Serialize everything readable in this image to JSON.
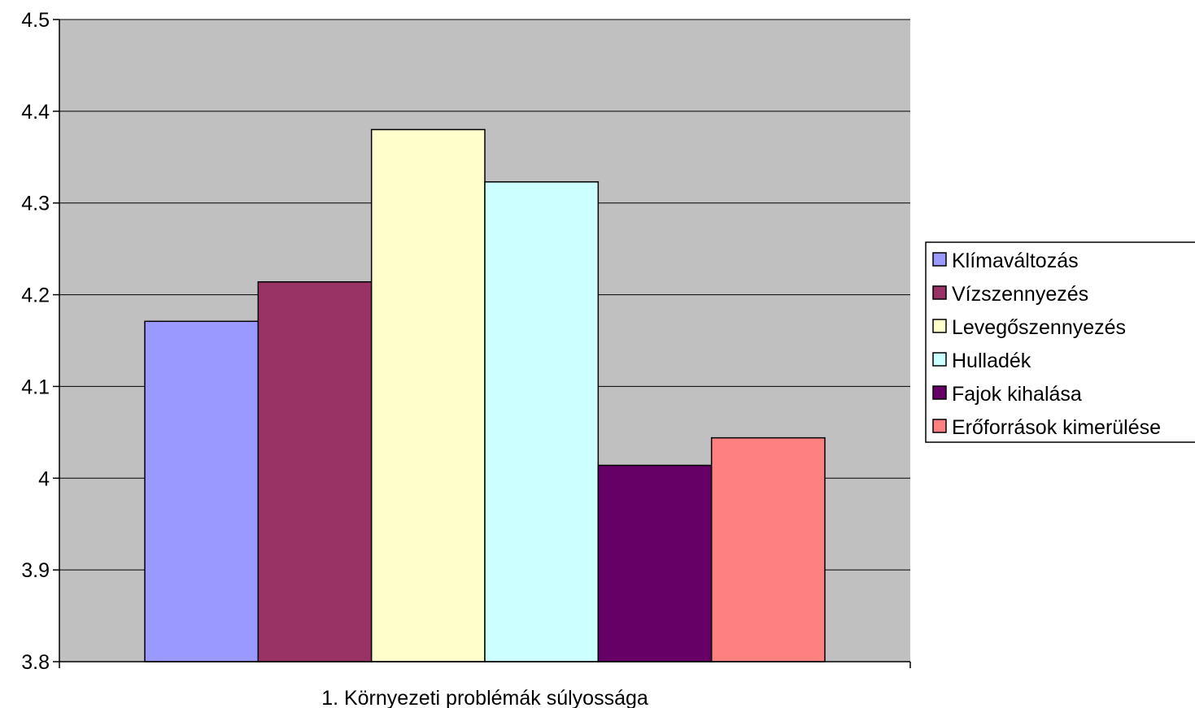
{
  "chart_data": {
    "type": "bar",
    "categories": [
      "1. Környezeti problémák súlyossága"
    ],
    "series": [
      {
        "name": "Klímaváltozás",
        "values": [
          4.171
        ],
        "color": "#9999ff"
      },
      {
        "name": "Vízszennyezés",
        "values": [
          4.214
        ],
        "color": "#993366"
      },
      {
        "name": "Levegőszennyezés",
        "values": [
          4.38
        ],
        "color": "#ffffcc"
      },
      {
        "name": "Hulladék",
        "values": [
          4.323
        ],
        "color": "#ccffff"
      },
      {
        "name": "Fajok kihalása",
        "values": [
          4.014
        ],
        "color": "#660066"
      },
      {
        "name": "Erőforrások kimerülése",
        "values": [
          4.044
        ],
        "color": "#ff8080"
      }
    ],
    "ylim": [
      3.8,
      4.5
    ],
    "yticks": [
      "3.8",
      "3.9",
      "4",
      "4.1",
      "4.2",
      "4.3",
      "4.4",
      "4.5"
    ],
    "plot_background": "#c0c0c0",
    "grid": true,
    "legend_position": "right"
  }
}
